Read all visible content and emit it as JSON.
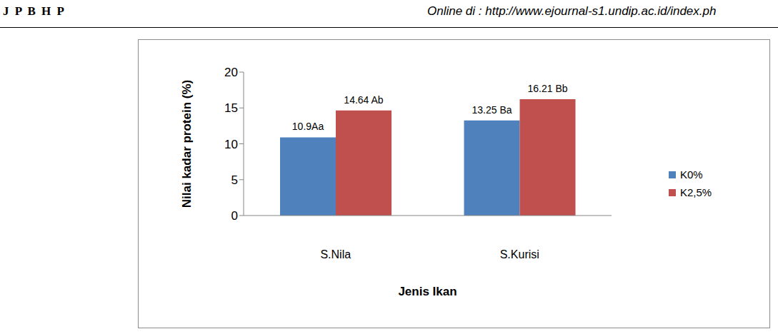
{
  "page_header": {
    "left": "J P B H P",
    "right": "Online di : http://www.ejournal-s1.undip.ac.id/index.ph"
  },
  "chart_data": {
    "type": "bar",
    "categories": [
      "S.Nila",
      "S.Kurisi"
    ],
    "series": [
      {
        "name": "K0%",
        "color": "#4f81bd",
        "values": [
          10.9,
          13.25
        ],
        "value_labels": [
          "10.9Aa",
          "13.25 Ba"
        ]
      },
      {
        "name": "K2,5%",
        "color": "#c0504d",
        "values": [
          14.64,
          16.21
        ],
        "value_labels": [
          "14.64 Ab",
          "16.21 Bb"
        ]
      }
    ],
    "x_label": "Jenis Ikan",
    "y_label": "Nilai kadar protein (%)",
    "ylim": [
      0,
      20
    ],
    "yticks": [
      0,
      5,
      10,
      15,
      20
    ],
    "grid": false,
    "legend": "right",
    "data_labels": true
  }
}
